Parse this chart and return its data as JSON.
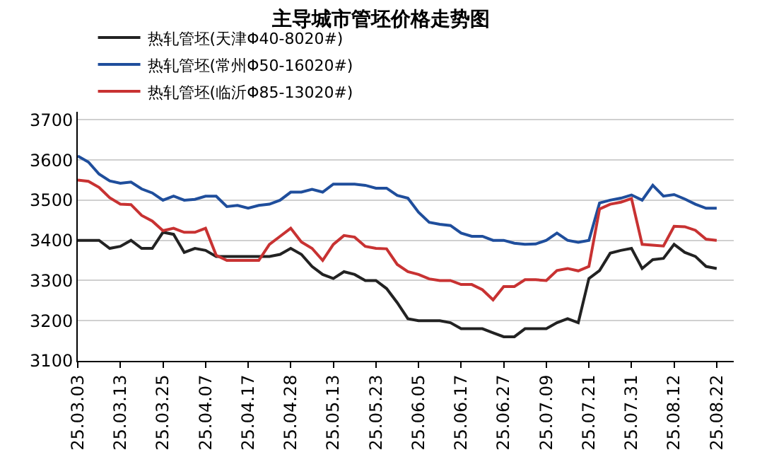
{
  "chart_data": {
    "type": "line",
    "title": "主导城市管坯价格走势图",
    "categories": [
      "25.03.03",
      null,
      null,
      null,
      "25.03.13",
      null,
      null,
      null,
      "25.03.25",
      null,
      null,
      null,
      "25.04.07",
      null,
      null,
      null,
      "25.04.17",
      null,
      null,
      null,
      "25.04.28",
      null,
      null,
      null,
      "25.05.13",
      null,
      null,
      null,
      "25.05.23",
      null,
      null,
      null,
      "25.06.05",
      null,
      null,
      null,
      "25.06.17",
      null,
      null,
      null,
      "25.06.27",
      null,
      null,
      null,
      "25.07.09",
      null,
      null,
      null,
      "25.07.21",
      null,
      null,
      null,
      "25.07.31",
      null,
      null,
      null,
      "25.08.12",
      null,
      null,
      null,
      "25.08.22"
    ],
    "ylim": [
      3100,
      3720
    ],
    "yticks": [
      3100,
      3200,
      3300,
      3400,
      3500,
      3600,
      3700
    ],
    "grid": "y",
    "legend": "top",
    "marker": "none",
    "line_style": "solid",
    "series": [
      {
        "name": "热轧管坯(天津Φ40-8020#)",
        "color": "#222222",
        "values": [
          3400,
          3400,
          3400,
          3380,
          3385,
          3400,
          3380,
          3380,
          3420,
          3415,
          3370,
          3380,
          3375,
          3360,
          3360,
          3360,
          3360,
          3360,
          3360,
          3365,
          3380,
          3365,
          3335,
          3315,
          3305,
          3322,
          3315,
          3300,
          3300,
          3280,
          3245,
          3205,
          3200,
          3200,
          3200,
          3195,
          3180,
          3180,
          3180,
          3170,
          3160,
          3160,
          3180,
          3180,
          3180,
          3195,
          3205,
          3195,
          3305,
          3325,
          3368,
          3375,
          3380,
          3330,
          3352,
          3355,
          3390,
          3370,
          3360,
          3335,
          3330
        ]
      },
      {
        "name": "热轧管坯(常州Φ50-16020#)",
        "color": "#1f4e9c",
        "values": [
          3610,
          3595,
          3565,
          3548,
          3542,
          3545,
          3528,
          3518,
          3500,
          3510,
          3500,
          3502,
          3510,
          3510,
          3484,
          3487,
          3480,
          3487,
          3490,
          3500,
          3520,
          3520,
          3527,
          3520,
          3540,
          3540,
          3540,
          3537,
          3530,
          3530,
          3512,
          3505,
          3470,
          3445,
          3440,
          3437,
          3418,
          3410,
          3410,
          3400,
          3400,
          3393,
          3390,
          3391,
          3400,
          3418,
          3400,
          3395,
          3400,
          3493,
          3500,
          3505,
          3513,
          3500,
          3537,
          3510,
          3514,
          3503,
          3490,
          3480,
          3480
        ]
      },
      {
        "name": "热轧管坯(临沂Φ85-13020#)",
        "color": "#c83232",
        "values": [
          3550,
          3547,
          3532,
          3506,
          3490,
          3489,
          3462,
          3448,
          3424,
          3430,
          3420,
          3420,
          3430,
          3363,
          3350,
          3350,
          3350,
          3350,
          3390,
          3410,
          3430,
          3396,
          3380,
          3350,
          3390,
          3412,
          3408,
          3385,
          3380,
          3379,
          3340,
          3322,
          3315,
          3304,
          3300,
          3300,
          3290,
          3290,
          3277,
          3252,
          3285,
          3285,
          3302,
          3302,
          3300,
          3325,
          3330,
          3324,
          3335,
          3478,
          3490,
          3495,
          3504,
          3390,
          3388,
          3386,
          3435,
          3434,
          3425,
          3403,
          3400
        ]
      }
    ]
  }
}
